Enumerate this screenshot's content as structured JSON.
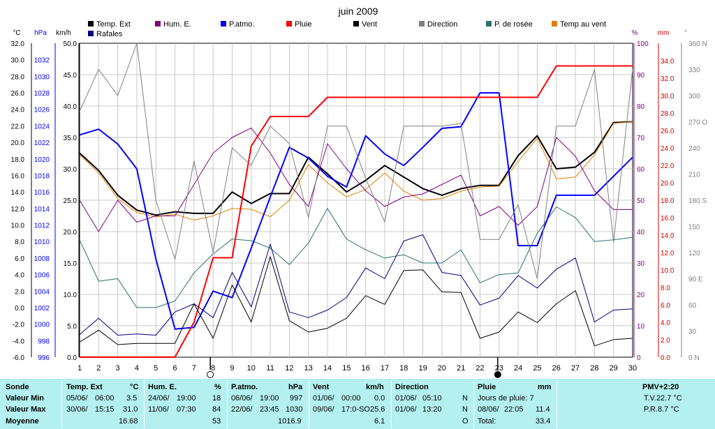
{
  "chart_data": {
    "type": "line",
    "title": "juin 2009",
    "x": [
      1,
      2,
      3,
      4,
      5,
      6,
      7,
      8,
      9,
      10,
      11,
      12,
      13,
      14,
      15,
      16,
      17,
      18,
      19,
      20,
      21,
      22,
      23,
      24,
      25,
      26,
      27,
      28,
      29,
      30
    ],
    "x_ticks": [
      "1",
      "2",
      "3",
      "4",
      "5",
      "6",
      "7",
      "8",
      "9",
      "10",
      "11",
      "12",
      "13",
      "14",
      "15",
      "16",
      "17",
      "18",
      "19",
      "20",
      "21",
      "22",
      "23",
      "24",
      "25",
      "26",
      "27",
      "28",
      "29",
      "30"
    ],
    "axes": {
      "temp": {
        "unit": "°C",
        "range": [
          -6,
          32
        ],
        "ticks": [
          "32.0",
          "30.0",
          "28.0",
          "26.0",
          "24.0",
          "22.0",
          "20.0",
          "18.0",
          "16.0",
          "14.0",
          "12.0",
          "10.0",
          "8.0",
          "6.0",
          "4.0",
          "2.0",
          "0.0",
          "-2.0",
          "-4.0",
          "-6.0"
        ]
      },
      "pressure": {
        "unit": "hPa",
        "range": [
          996,
          1034
        ],
        "ticks": [
          "1032",
          "1030",
          "1028",
          "1026",
          "1024",
          "1022",
          "1020",
          "1018",
          "1016",
          "1014",
          "1012",
          "1010",
          "1008",
          "1006",
          "1004",
          "1002",
          "1000",
          "998",
          "996"
        ]
      },
      "wind": {
        "unit": "km/h",
        "range": [
          0,
          50
        ],
        "ticks": [
          "50.0",
          "45.0",
          "40.0",
          "35.0",
          "30.0",
          "25.0",
          "20.0",
          "15.0",
          "10.0",
          "5.0",
          "0.0"
        ]
      },
      "humidity": {
        "unit": "%",
        "range": [
          0,
          100
        ],
        "ticks": [
          "100",
          "90",
          "80",
          "70",
          "60",
          "50",
          "40",
          "30",
          "20",
          "10",
          "0"
        ]
      },
      "rain": {
        "unit": "mm",
        "range": [
          0,
          36
        ],
        "ticks": [
          "34.0",
          "32.0",
          "30.0",
          "28.0",
          "26.0",
          "24.0",
          "22.0",
          "20.0",
          "18.0",
          "16.0",
          "14.0",
          "12.0",
          "10.0",
          "8.0",
          "6.0",
          "4.0",
          "2.0",
          "0.0"
        ]
      },
      "direction": {
        "unit": "°",
        "range": [
          0,
          360
        ],
        "ticks": [
          "360 N",
          "330",
          "300",
          "270 O",
          "240",
          "210",
          "180 S",
          "150",
          "120",
          "90 E",
          "60",
          "30",
          "0 N"
        ]
      }
    },
    "legend": [
      {
        "name": "Temp. Ext",
        "color": "#000000"
      },
      {
        "name": "Hum. E.",
        "color": "#800080"
      },
      {
        "name": "P.atmo.",
        "color": "#0000ff"
      },
      {
        "name": "Pluie",
        "color": "#ff0000"
      },
      {
        "name": "Vent",
        "color": "#000000"
      },
      {
        "name": "Direction",
        "color": "#808080"
      },
      {
        "name": "P. de rosée",
        "color": "#2f6f6f"
      },
      {
        "name": "Temp au vent",
        "color": "#e08000"
      },
      {
        "name": "Rafales",
        "color": "#000080"
      }
    ],
    "series": [
      {
        "name": "Temp. Ext",
        "axis": "temp",
        "color": "#000000",
        "width": 2,
        "values": [
          18.7,
          16.6,
          13.6,
          11.8,
          11.2,
          11.6,
          11.4,
          11.4,
          14.0,
          12.6,
          13.8,
          13.8,
          18.2,
          16.2,
          14.0,
          15.4,
          17.2,
          15.8,
          14.4,
          13.6,
          14.4,
          14.8,
          14.8,
          18.4,
          20.8,
          16.8,
          17.0,
          18.8,
          22.4,
          22.5
        ]
      },
      {
        "name": "Temp au vent",
        "axis": "temp",
        "color": "#e08000",
        "width": 1,
        "values": [
          18.5,
          16.3,
          13.2,
          11.5,
          11.0,
          11.3,
          10.6,
          11.1,
          12.0,
          11.9,
          11.0,
          13.0,
          17.3,
          15.1,
          13.4,
          14.3,
          16.3,
          14.1,
          13.0,
          13.2,
          14.1,
          14.6,
          14.7,
          17.7,
          20.5,
          15.6,
          15.8,
          18.5,
          22.3,
          22.5
        ]
      },
      {
        "name": "P. de rosée",
        "axis": "temp",
        "color": "#2f6f6f",
        "width": 1,
        "values": [
          8.2,
          3.2,
          3.5,
          0.0,
          0.0,
          0.8,
          4.2,
          6.5,
          8.3,
          8.1,
          7.2,
          5.2,
          7.8,
          12.0,
          8.3,
          7.0,
          6.0,
          6.4,
          5.4,
          5.4,
          7.0,
          3.0,
          4.0,
          4.2,
          9.0,
          12.2,
          10.9,
          8.0,
          8.2,
          8.5
        ]
      },
      {
        "name": "P.atmo.",
        "axis": "pressure",
        "color": "#0000ff",
        "width": 2,
        "values": [
          1022.9,
          1023.6,
          1021.8,
          1018.8,
          1007.9,
          999.4,
          999.6,
          1004.0,
          1003.2,
          1009.2,
          1015.4,
          1021.4,
          1020.1,
          1017.9,
          1016.6,
          1022.8,
          1020.6,
          1019.2,
          1021.4,
          1023.7,
          1023.9,
          1028.0,
          1028.0,
          1009.5,
          1009.5,
          1015.6,
          1015.6,
          1015.6,
          1017.9,
          1020.2
        ]
      },
      {
        "name": "Hum. E.",
        "axis": "humidity",
        "color": "#800080",
        "width": 1,
        "values": [
          50,
          40,
          50,
          43,
          45,
          45,
          55,
          65,
          70,
          73,
          65,
          55,
          48,
          68,
          60,
          53,
          48,
          51,
          52,
          55,
          58,
          45,
          48,
          42,
          48,
          70,
          64,
          53,
          47,
          47
        ]
      },
      {
        "name": "Pluie",
        "axis": "rain",
        "color": "#ff0000",
        "width": 2,
        "values": [
          0,
          0,
          0,
          0,
          0,
          0,
          4.0,
          11.4,
          11.4,
          24.2,
          27.6,
          27.6,
          27.6,
          29.8,
          29.8,
          29.8,
          29.8,
          29.8,
          29.8,
          29.8,
          29.8,
          29.8,
          29.8,
          29.8,
          29.8,
          33.4,
          33.4,
          33.4,
          33.4,
          33.4
        ]
      },
      {
        "name": "Direction",
        "axis": "direction",
        "color": "#808080",
        "width": 1,
        "values": [
          282,
          330,
          300,
          360,
          180,
          112,
          225,
          120,
          240,
          220,
          265,
          245,
          160,
          265,
          265,
          205,
          155,
          265,
          265,
          265,
          268,
          135,
          135,
          175,
          90,
          265,
          265,
          330,
          132,
          330
        ]
      },
      {
        "name": "Rafales",
        "axis": "wind",
        "color": "#000080",
        "width": 1,
        "values": [
          3.6,
          6.2,
          3.5,
          3.7,
          3.5,
          7.2,
          8.5,
          6.3,
          13.5,
          8.0,
          18.0,
          7.2,
          6.3,
          7.5,
          9.5,
          14.2,
          12.5,
          18.5,
          19.5,
          13.5,
          13.0,
          8.3,
          9.4,
          13.0,
          11.0,
          14.0,
          15.8,
          5.6,
          7.5,
          7.7
        ]
      },
      {
        "name": "Vent",
        "axis": "wind",
        "color": "#000000",
        "width": 1,
        "values": [
          2.4,
          4.3,
          2.0,
          2.2,
          2.2,
          2.2,
          8.5,
          3.0,
          11.5,
          5.6,
          16.0,
          5.8,
          4.0,
          4.6,
          6.2,
          9.8,
          8.4,
          13.8,
          13.9,
          10.4,
          10.3,
          3.0,
          4.0,
          7.2,
          5.5,
          8.5,
          10.6,
          1.8,
          2.8,
          3.0
        ]
      }
    ]
  },
  "table": {
    "row_labels": [
      "Sonde",
      "Valeur Min",
      "Valeur Max",
      "Moyenne"
    ],
    "temp": {
      "title": "Temp. Ext",
      "unit": "°C",
      "min_date": "05/06/",
      "min_time": "06:00",
      "min": "3.5",
      "max_date": "30/06/",
      "max_time": "15:15",
      "max": "31.0",
      "avg": "16.68"
    },
    "hum": {
      "title": "Hum. E.",
      "unit": "%",
      "min_date": "24/06/",
      "min_time": "19:00",
      "min": "18",
      "max_date": "11/06/",
      "max_time": "07:30",
      "max": "84",
      "avg": "53"
    },
    "press": {
      "title": "P.atmo.",
      "unit": "hPa",
      "min_date": "06/06/",
      "min_time": "19:00",
      "min": "997",
      "max_date": "22/06/",
      "max_time": "23:45",
      "max": "1030",
      "avg": "1016.9"
    },
    "wind": {
      "title": "Vent",
      "unit": "km/h",
      "min_date": "01/06/",
      "min_time": "00:00",
      "min": "0.0",
      "max_date": "09/06/",
      "max_time": "17:0-SO",
      "max": "25.6",
      "avg": "6.1"
    },
    "dir": {
      "title": "Direction",
      "min_date": "01/06/",
      "min_time": "05:10",
      "min": "N",
      "max_date": "01/06/",
      "max_time": "13:20",
      "max": "N",
      "avg": "O"
    },
    "rain": {
      "title": "Pluie",
      "unit": "mm",
      "line1": "Jours de pluie: 7",
      "max_date": "08/06/",
      "max_time": "22:05",
      "max": "11.4",
      "total_label": "Total:",
      "total": "33.4"
    },
    "pmv": {
      "title": "PMV+2:20",
      "tv": "T.V.22.7 °C",
      "pr": "P.R.8.7 °C"
    }
  }
}
